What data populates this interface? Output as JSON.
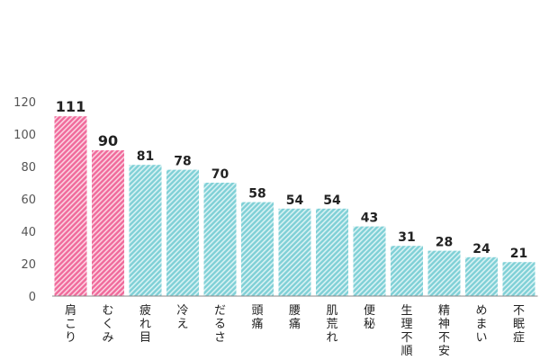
{
  "chart_data": {
    "type": "bar",
    "categories": [
      "肩こり",
      "むくみ",
      "疲れ目",
      "冷え",
      "だるさ",
      "頭痛",
      "腰痛",
      "肌荒れ",
      "便秘",
      "生理不順",
      "精神不安",
      "めまい",
      "不眠症"
    ],
    "values": [
      111,
      90,
      81,
      78,
      70,
      58,
      54,
      54,
      43,
      31,
      28,
      24,
      21
    ],
    "highlight": [
      true,
      true,
      false,
      false,
      false,
      false,
      false,
      false,
      false,
      false,
      false,
      false,
      false
    ],
    "title": "",
    "xlabel": "",
    "ylabel": "",
    "ylim": [
      0,
      120
    ],
    "yticks": [
      0,
      20,
      40,
      60,
      80,
      100,
      120
    ],
    "grid": false,
    "legend": "none",
    "colors": {
      "highlight_fill": "#f06a9b",
      "highlight_stripe": "#fbd3e2",
      "normal_fill": "#7fd0d6",
      "normal_stripe": "#d9f2f4",
      "axis": "#888888"
    }
  }
}
